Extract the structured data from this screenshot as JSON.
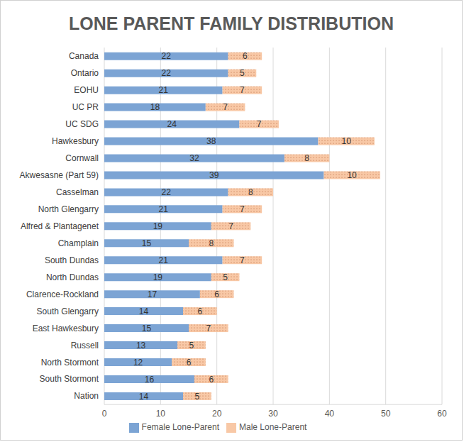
{
  "chart_data": {
    "type": "bar",
    "title": "LONE PARENT FAMILY DISTRIBUTION",
    "orientation": "horizontal",
    "stacked": true,
    "data_labels": true,
    "grid": true,
    "legend": "bottom",
    "xlim": [
      0,
      60
    ],
    "xticks": [
      0,
      10,
      20,
      30,
      40,
      50,
      60
    ],
    "categories": [
      "Canada",
      "Ontario",
      "EOHU",
      "UC PR",
      "UC SDG",
      "Hawkesbury",
      "Cornwall",
      "Akwesasne (Part 59)",
      "Casselman",
      "North Glengarry",
      "Alfred & Plantagenet",
      "Champlain",
      "South Dundas",
      "North Dundas",
      "Clarence-Rockland",
      "South Glengarry",
      "East Hawkesbury",
      "Russell",
      "North Stormont",
      "South Stormont",
      "Nation"
    ],
    "series": [
      {
        "name": "Female Lone-Parent",
        "color": "#7ca4d4",
        "values": [
          22,
          22,
          21,
          18,
          24,
          38,
          32,
          39,
          22,
          21,
          19,
          15,
          21,
          19,
          17,
          14,
          15,
          13,
          12,
          16,
          14
        ]
      },
      {
        "name": "Male Lone-Parent",
        "color": "#f8c8a6",
        "values": [
          6,
          5,
          7,
          7,
          7,
          10,
          8,
          10,
          8,
          7,
          7,
          8,
          7,
          5,
          6,
          6,
          7,
          5,
          6,
          6,
          5
        ]
      }
    ]
  }
}
